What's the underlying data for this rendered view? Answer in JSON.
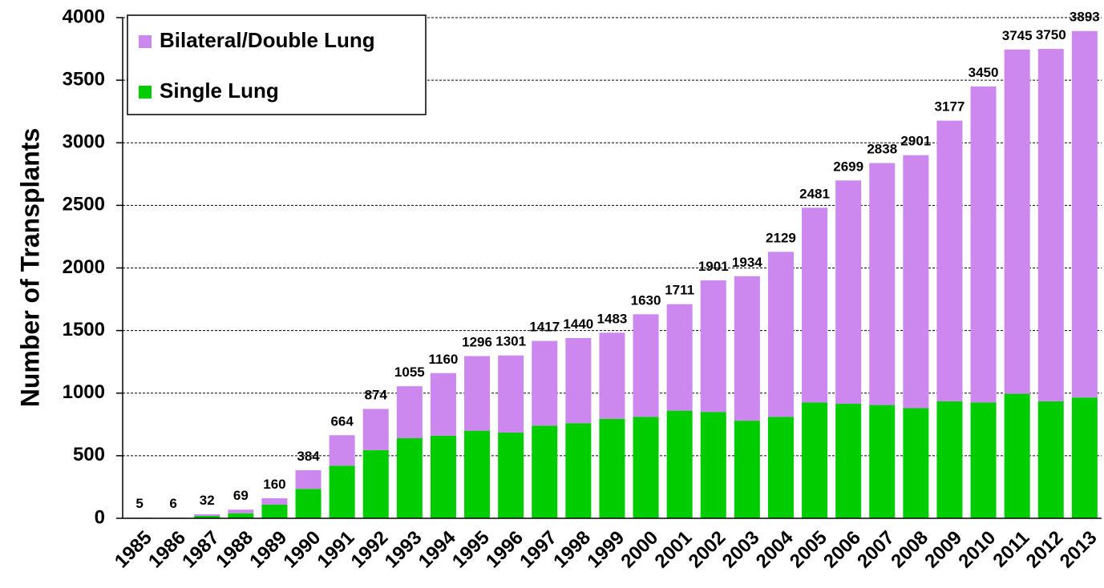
{
  "chart_data": {
    "type": "stacked_bar",
    "y_label": "Number of Transplants",
    "categories": [
      "1985",
      "1986",
      "1987",
      "1988",
      "1989",
      "1990",
      "1991",
      "1992",
      "1993",
      "1994",
      "1995",
      "1996",
      "1997",
      "1998",
      "1999",
      "2000",
      "2001",
      "2002",
      "2003",
      "2004",
      "2005",
      "2006",
      "2007",
      "2008",
      "2009",
      "2010",
      "2011",
      "2012",
      "2013"
    ],
    "series": [
      {
        "name": "Single Lung",
        "color": "#00cc00",
        "values": [
          3,
          4,
          20,
          40,
          110,
          235,
          420,
          545,
          640,
          660,
          700,
          685,
          740,
          760,
          795,
          810,
          860,
          850,
          780,
          810,
          925,
          915,
          905,
          880,
          935,
          925,
          995,
          935,
          965
        ]
      },
      {
        "name": "Bilateral/Double Lung",
        "color": "#cc88ee",
        "values": [
          2,
          2,
          12,
          29,
          50,
          149,
          244,
          329,
          415,
          500,
          596,
          616,
          677,
          680,
          688,
          820,
          851,
          1051,
          1154,
          1319,
          1556,
          1784,
          1933,
          2021,
          2242,
          2525,
          2750,
          2815,
          2928
        ]
      }
    ],
    "totals": [
      5,
      6,
      32,
      69,
      160,
      384,
      664,
      874,
      1055,
      1160,
      1296,
      1301,
      1417,
      1440,
      1483,
      1630,
      1711,
      1901,
      1934,
      2129,
      2481,
      2699,
      2838,
      2901,
      3177,
      3450,
      3745,
      3750,
      3893
    ],
    "ylim": [
      0,
      4000
    ],
    "yticks": [
      0,
      500,
      1000,
      1500,
      2000,
      2500,
      3000,
      3500,
      4000
    ],
    "grid": true,
    "legend": "upper left"
  }
}
